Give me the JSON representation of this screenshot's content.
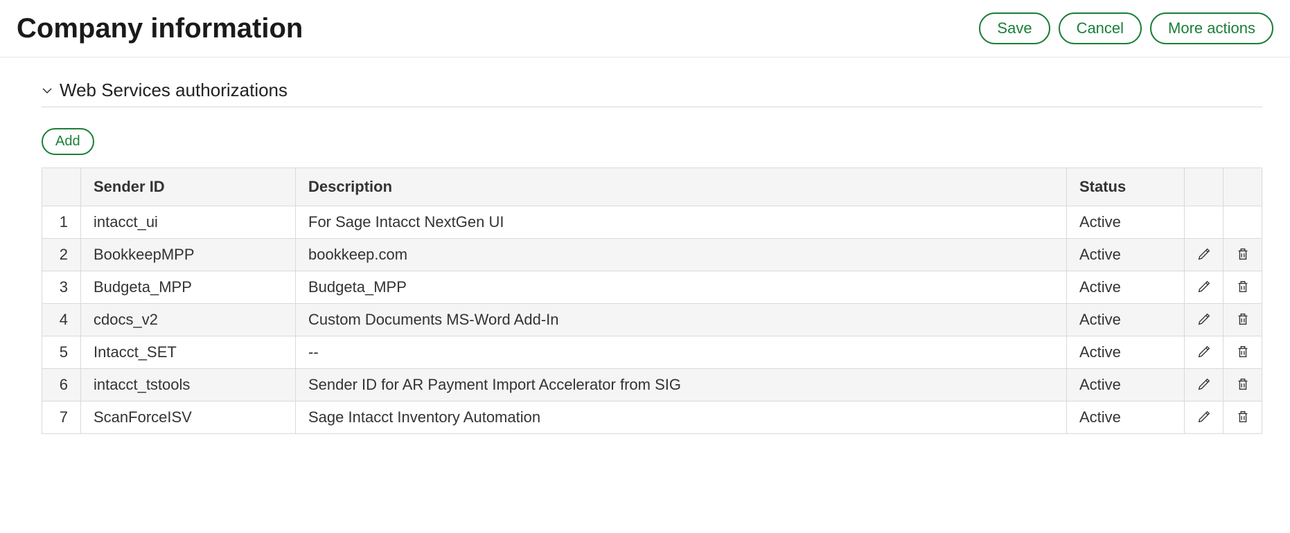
{
  "page": {
    "title": "Company information"
  },
  "actions": {
    "save": "Save",
    "cancel": "Cancel",
    "more": "More actions"
  },
  "section": {
    "title": "Web Services authorizations",
    "add_label": "Add"
  },
  "table": {
    "headers": {
      "sender_id": "Sender ID",
      "description": "Description",
      "status": "Status"
    },
    "rows": [
      {
        "num": "1",
        "sender_id": "intacct_ui",
        "description": "For Sage Intacct NextGen UI",
        "status": "Active",
        "editable": false
      },
      {
        "num": "2",
        "sender_id": "BookkeepMPP",
        "description": "bookkeep.com",
        "status": "Active",
        "editable": true
      },
      {
        "num": "3",
        "sender_id": "Budgeta_MPP",
        "description": "Budgeta_MPP",
        "status": "Active",
        "editable": true
      },
      {
        "num": "4",
        "sender_id": "cdocs_v2",
        "description": "Custom Documents MS-Word Add-In",
        "status": "Active",
        "editable": true
      },
      {
        "num": "5",
        "sender_id": "Intacct_SET",
        "description": "--",
        "status": "Active",
        "editable": true
      },
      {
        "num": "6",
        "sender_id": "intacct_tstools",
        "description": "Sender ID for AR Payment Import Accelerator from SIG",
        "status": "Active",
        "editable": true
      },
      {
        "num": "7",
        "sender_id": "ScanForceISV",
        "description": "Sage Intacct Inventory Automation",
        "status": "Active",
        "editable": true
      }
    ]
  },
  "colors": {
    "accent": "#1a7f37",
    "border": "#d9d9d9",
    "row_alt": "#f5f5f5",
    "text": "#333333"
  }
}
